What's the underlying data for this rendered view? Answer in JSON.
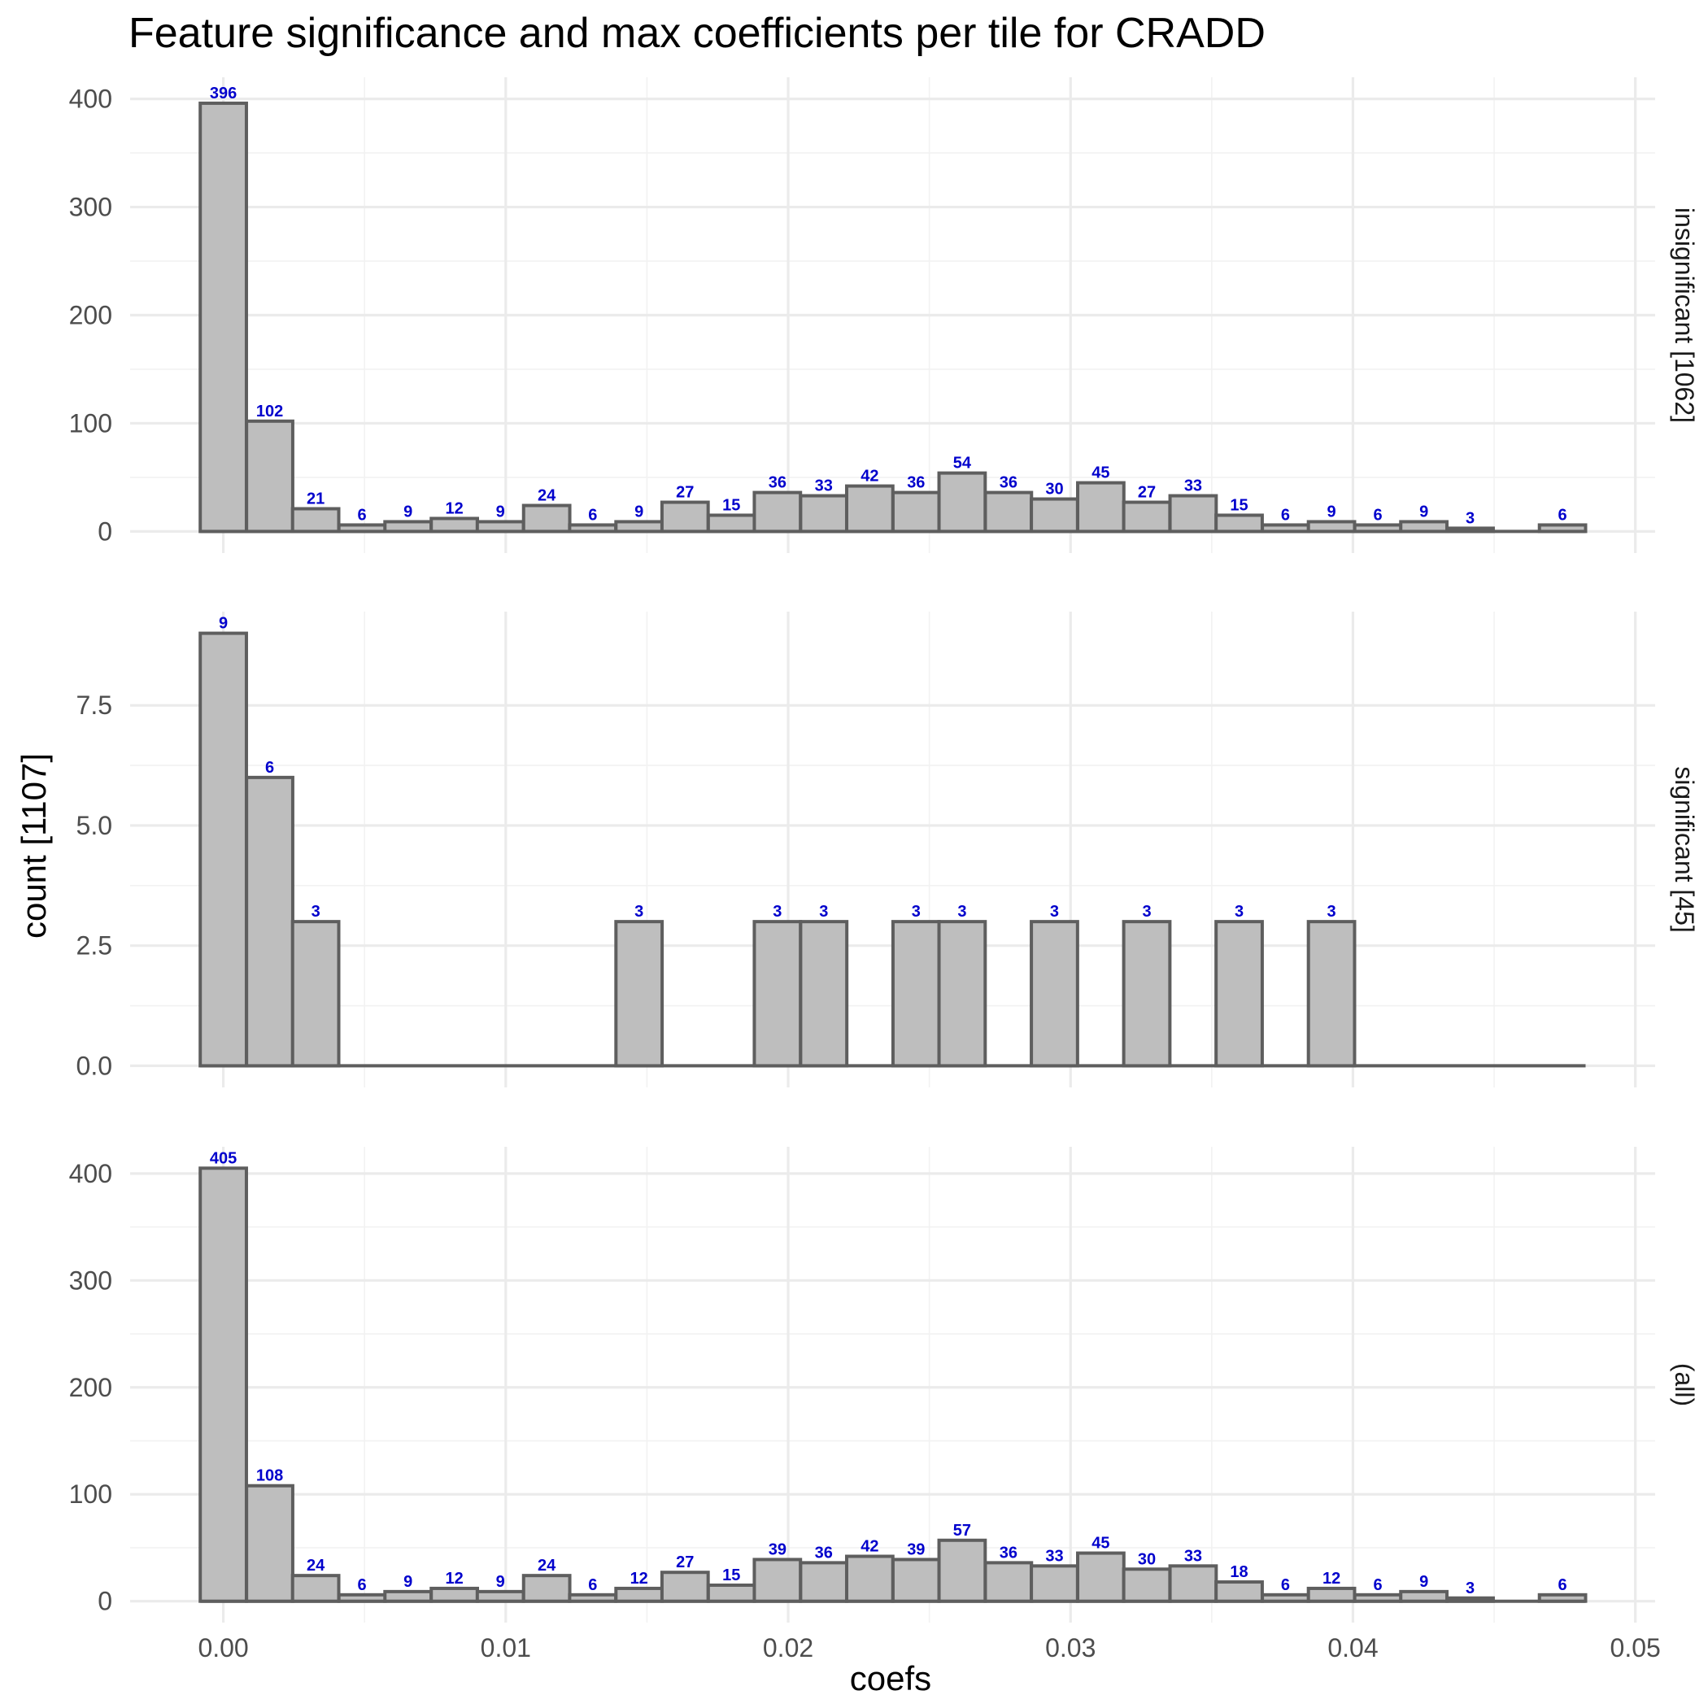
{
  "chart_data": {
    "type": "bar",
    "title": "Feature significance and max coefficients per tile for CRADD",
    "xlabel": "coefs",
    "ylabel": "count [1107]",
    "x_ticks": [
      "0.00",
      "0.01",
      "0.02",
      "0.03",
      "0.04",
      "0.05"
    ],
    "xlim": [
      -0.0033,
      0.0507
    ],
    "bin_width": 0.001635,
    "bin_centers": [
      0.0,
      0.00164,
      0.00327,
      0.00491,
      0.00654,
      0.00818,
      0.00981,
      0.01145,
      0.01308,
      0.01472,
      0.01635,
      0.01799,
      0.01962,
      0.02126,
      0.02289,
      0.02453,
      0.02616,
      0.0278,
      0.02943,
      0.03107,
      0.0327,
      0.03434,
      0.03597,
      0.03761,
      0.03924,
      0.04088,
      0.04251,
      0.04415,
      0.04578,
      0.04742
    ],
    "panels": [
      {
        "strip": "insignificant [1062]",
        "ylim": [
          -20,
          420
        ],
        "y_ticks": [
          "0",
          "100",
          "200",
          "300",
          "400"
        ],
        "y_tick_values": [
          0,
          100,
          200,
          300,
          400
        ],
        "values": [
          396,
          102,
          21,
          6,
          9,
          12,
          9,
          24,
          6,
          9,
          27,
          15,
          36,
          33,
          42,
          36,
          54,
          36,
          30,
          45,
          27,
          33,
          15,
          6,
          9,
          6,
          9,
          3,
          0,
          6
        ]
      },
      {
        "strip": "significant [45]",
        "ylim": [
          -0.45,
          9.45
        ],
        "y_ticks": [
          "0.0",
          "2.5",
          "5.0",
          "7.5"
        ],
        "y_tick_values": [
          0,
          2.5,
          5,
          7.5
        ],
        "values": [
          9,
          6,
          3,
          0,
          0,
          0,
          0,
          0,
          0,
          3,
          0,
          0,
          3,
          3,
          0,
          3,
          3,
          0,
          3,
          0,
          3,
          0,
          3,
          0,
          3,
          0,
          0,
          0,
          0,
          0
        ]
      },
      {
        "strip": "(all)",
        "ylim": [
          -20,
          425
        ],
        "y_ticks": [
          "0",
          "100",
          "200",
          "300",
          "400"
        ],
        "y_tick_values": [
          0,
          100,
          200,
          300,
          400
        ],
        "values": [
          405,
          108,
          24,
          6,
          9,
          12,
          9,
          24,
          6,
          12,
          27,
          15,
          39,
          36,
          42,
          39,
          57,
          36,
          33,
          45,
          30,
          33,
          18,
          6,
          12,
          6,
          9,
          3,
          0,
          6
        ]
      }
    ],
    "colors": {
      "bar_fill": "#bebebe",
      "bar_stroke": "#5e5e5e",
      "label": "#0000cc",
      "grid": "#ebebeb"
    },
    "grid": true,
    "legend": "none"
  }
}
